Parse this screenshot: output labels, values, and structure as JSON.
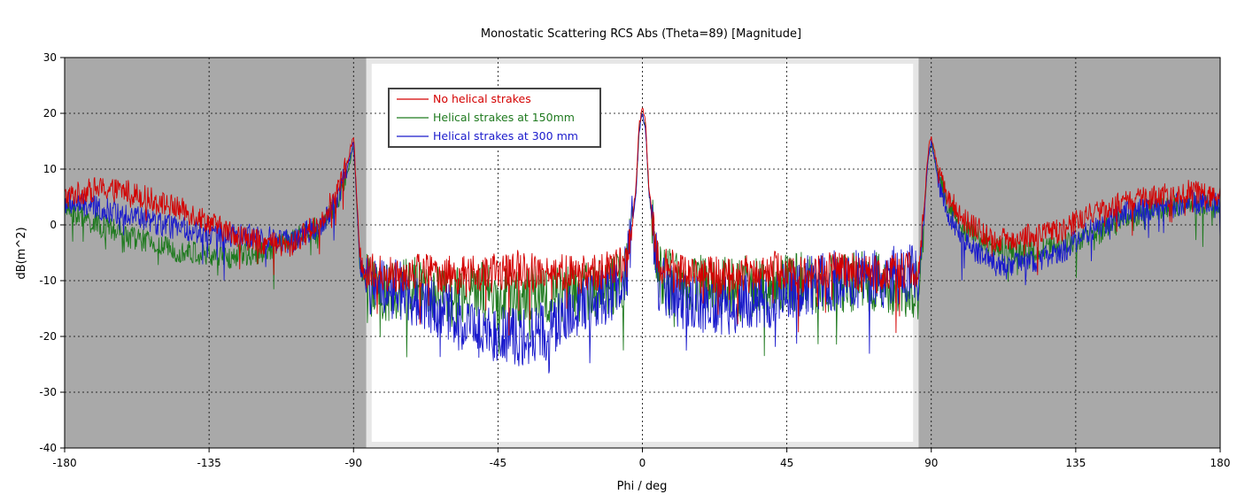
{
  "chart_data": {
    "type": "line",
    "title": "Monostatic Scattering RCS Abs (Theta=89) [Magnitude]",
    "xlabel": "Phi / deg",
    "ylabel": "dB(m^2)",
    "xlim": [
      -180,
      180
    ],
    "ylim": [
      -40,
      30
    ],
    "x_ticks": [
      "-180",
      "-135",
      "-90",
      "-45",
      "0",
      "45",
      "90",
      "135",
      "180"
    ],
    "y_ticks": [
      "30",
      "20",
      "10",
      "0",
      "-10",
      "-20",
      "-30",
      "-40"
    ],
    "grid": true,
    "legend_position": "top-left",
    "shaded_regions": [
      [
        -180,
        -86
      ],
      [
        86,
        180
      ]
    ],
    "shade_color": "#a9a9a9",
    "series": [
      {
        "name": "No helical strakes",
        "color": "#d40000",
        "x": [
          -180,
          -170,
          -160,
          -150,
          -140,
          -130,
          -120,
          -110,
          -100,
          -95,
          -92,
          -90,
          -89,
          -88,
          -86,
          -84,
          -80,
          -70,
          -60,
          -50,
          -40,
          -30,
          -20,
          -10,
          -5,
          -3,
          -2,
          -1,
          0,
          1,
          2,
          3,
          5,
          10,
          20,
          30,
          40,
          50,
          60,
          70,
          80,
          84,
          86,
          88,
          89,
          90,
          91,
          92,
          95,
          100,
          110,
          120,
          130,
          140,
          150,
          160,
          170,
          180
        ],
        "y": [
          5,
          6.5,
          6,
          4,
          2,
          -1,
          -3,
          -4,
          1,
          6,
          11,
          16,
          5,
          -6,
          -9,
          -8,
          -9,
          -8,
          -9,
          -9,
          -8,
          -8,
          -9,
          -8,
          -7,
          2,
          7,
          18,
          21,
          18,
          7,
          2,
          -7,
          -8,
          -9,
          -9,
          -8,
          -9,
          -8,
          -9,
          -8,
          -8,
          -9,
          5,
          13,
          16,
          13,
          10,
          5,
          1,
          -3,
          -2,
          -1,
          2,
          4,
          5,
          6,
          5
        ]
      },
      {
        "name": "Helical strakes at 150mm",
        "color": "#1f7a1f",
        "x": [
          -180,
          -170,
          -160,
          -150,
          -140,
          -130,
          -120,
          -110,
          -100,
          -95,
          -92,
          -90,
          -89,
          -88,
          -86,
          -84,
          -80,
          -70,
          -60,
          -50,
          -40,
          -30,
          -20,
          -10,
          -5,
          -3,
          -2,
          -1,
          0,
          1,
          2,
          3,
          5,
          10,
          20,
          30,
          40,
          50,
          60,
          70,
          80,
          84,
          86,
          88,
          89,
          90,
          91,
          92,
          95,
          100,
          110,
          120,
          130,
          140,
          150,
          160,
          170,
          180
        ],
        "y": [
          3,
          0,
          -2,
          -4,
          -5,
          -6,
          -5,
          -3,
          0,
          4,
          9,
          14,
          4,
          -8,
          -10,
          -12,
          -12,
          -11,
          -13,
          -12,
          -13,
          -12,
          -12,
          -11,
          -9,
          1,
          6,
          17,
          20,
          17,
          6,
          1,
          -9,
          -10,
          -11,
          -11,
          -11,
          -10,
          -11,
          -10,
          -11,
          -11,
          -12,
          4,
          12,
          15,
          12,
          9,
          4,
          -1,
          -4,
          -5,
          -4,
          -2,
          1,
          3,
          4,
          3
        ]
      },
      {
        "name": "Helical strakes at 300 mm",
        "color": "#1a1acc",
        "x": [
          -180,
          -170,
          -160,
          -150,
          -140,
          -130,
          -120,
          -110,
          -100,
          -95,
          -92,
          -90,
          -89,
          -88,
          -86,
          -84,
          -80,
          -70,
          -60,
          -50,
          -40,
          -30,
          -20,
          -10,
          -5,
          -3,
          -2,
          -1,
          0,
          1,
          2,
          3,
          5,
          10,
          20,
          30,
          40,
          50,
          60,
          70,
          80,
          84,
          86,
          88,
          89,
          90,
          91,
          92,
          95,
          100,
          110,
          120,
          130,
          140,
          150,
          160,
          170,
          180
        ],
        "y": [
          4,
          3,
          2,
          0,
          -1,
          -2,
          -2,
          -3,
          0,
          5,
          10,
          15,
          4,
          -7,
          -10,
          -11,
          -11,
          -13,
          -16,
          -19,
          -20,
          -19,
          -15,
          -12,
          -9,
          1,
          6,
          17,
          20,
          17,
          6,
          1,
          -10,
          -13,
          -15,
          -14,
          -13,
          -11,
          -10,
          -10,
          -9,
          -9,
          -10,
          4,
          12,
          15,
          12,
          8,
          2,
          -3,
          -7,
          -7,
          -5,
          -1,
          2,
          3,
          4,
          4
        ]
      }
    ]
  }
}
